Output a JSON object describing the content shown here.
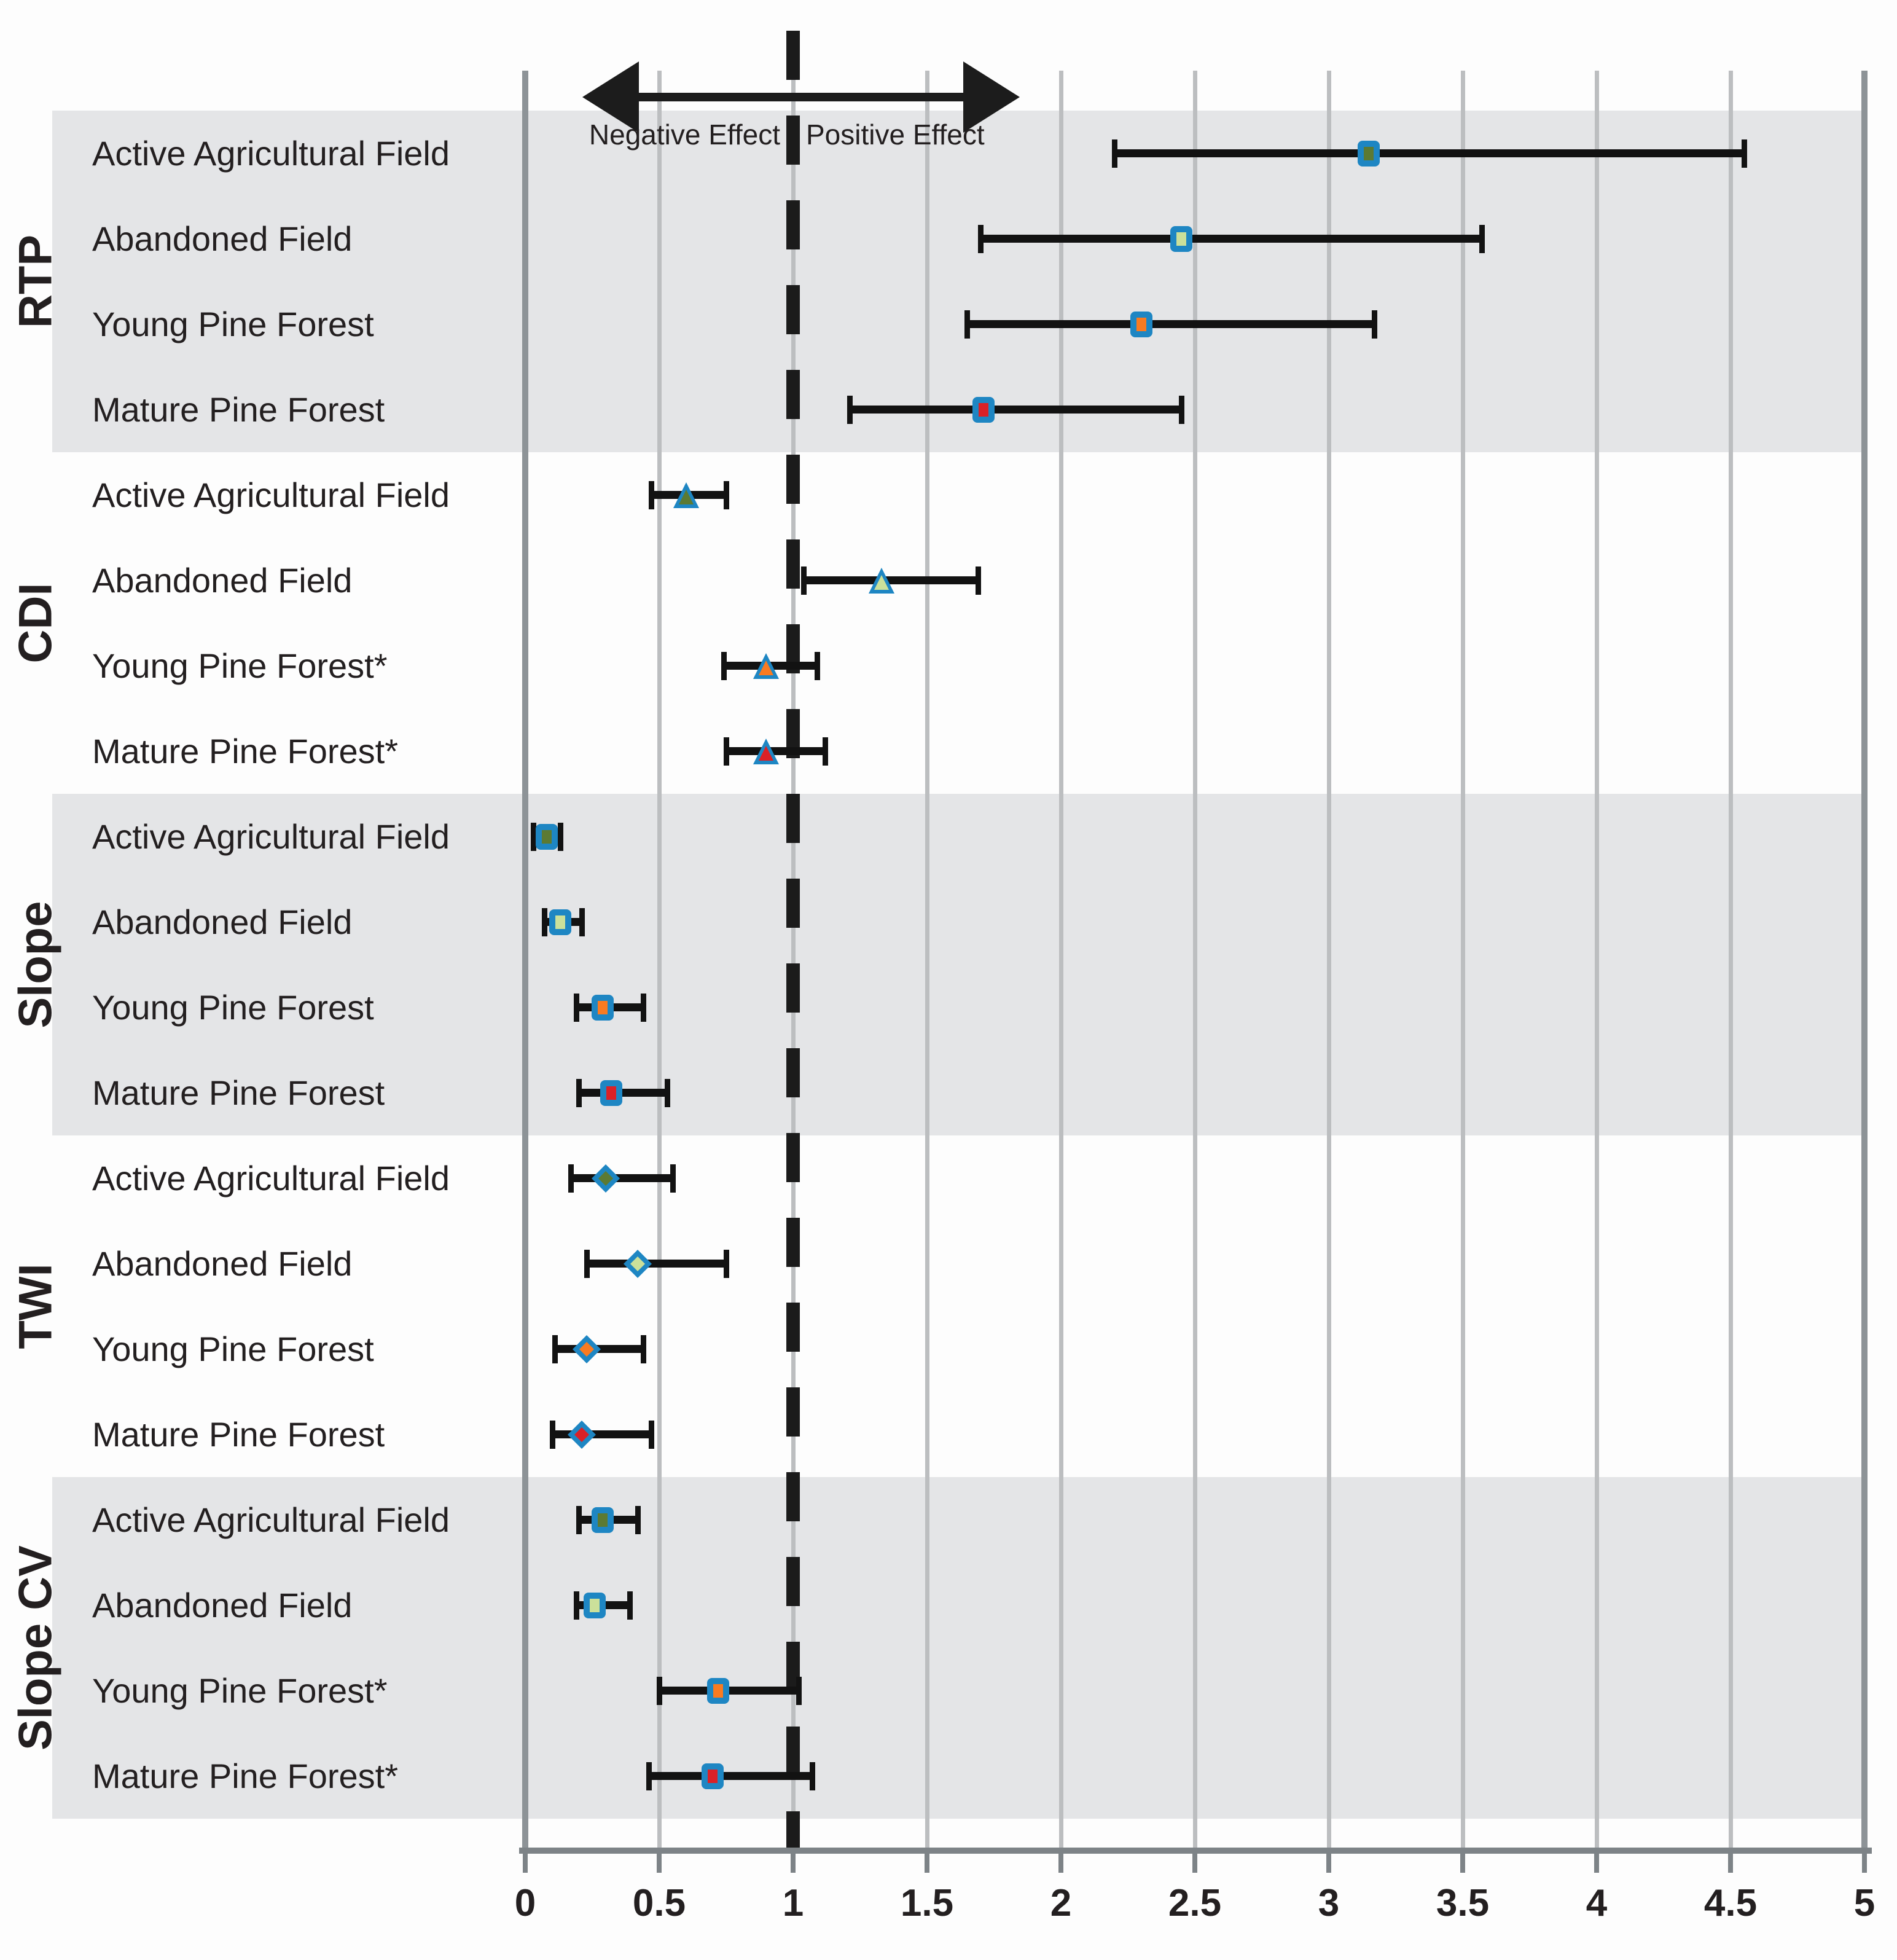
{
  "chart_data": {
    "type": "scatter",
    "subtype": "forest-plot-with-error-bars",
    "title": "",
    "xlabel": "",
    "ylabel": "",
    "axis": {
      "min": 0,
      "max": 5,
      "step": 0.5,
      "tick_labels": [
        "0",
        "0.5",
        "1",
        "1.5",
        "2",
        "2.5",
        "3",
        "3.5",
        "4",
        "4.5",
        "5"
      ],
      "reference_line_x": 1,
      "grid": true
    },
    "annotations": {
      "negative_label": "Negative Effect",
      "positive_label": "Positive Effect"
    },
    "colors": {
      "marker_border": "#1e86c3",
      "fill_active_agricultural": "#5c7a33",
      "fill_abandoned": "#cbe09a",
      "fill_young_pine": "#f97b21",
      "fill_mature_pine": "#da2127",
      "band": "#e4e5e7",
      "grid_line": "#bcbec0",
      "frame_line": "#8d9397",
      "axis_line": "#7d8387",
      "error_bar": "#121212",
      "text": "#231f20",
      "dashed_line": "#1b1b1b"
    },
    "groups": [
      {
        "label": "RTP",
        "marker": "square",
        "shaded": true,
        "rows": [
          {
            "label": "Active Agricultural Field",
            "fill": "fill_active_agricultural",
            "value": 3.15,
            "ci_low": 2.2,
            "ci_high": 4.55
          },
          {
            "label": "Abandoned Field",
            "fill": "fill_abandoned",
            "value": 2.45,
            "ci_low": 1.7,
            "ci_high": 3.57
          },
          {
            "label": "Young Pine Forest",
            "fill": "fill_young_pine",
            "value": 2.3,
            "ci_low": 1.65,
            "ci_high": 3.17
          },
          {
            "label": "Mature Pine Forest",
            "fill": "fill_mature_pine",
            "value": 1.71,
            "ci_low": 1.21,
            "ci_high": 2.45
          }
        ]
      },
      {
        "label": "CDI",
        "marker": "triangle",
        "shaded": false,
        "rows": [
          {
            "label": "Active Agricultural Field",
            "fill": "fill_active_agricultural",
            "value": 0.6,
            "ci_low": 0.47,
            "ci_high": 0.75
          },
          {
            "label": "Abandoned Field",
            "fill": "fill_abandoned",
            "value": 1.33,
            "ci_low": 1.04,
            "ci_high": 1.69
          },
          {
            "label": "Young Pine Forest*",
            "fill": "fill_young_pine",
            "value": 0.9,
            "ci_low": 0.74,
            "ci_high": 1.09
          },
          {
            "label": "Mature Pine Forest*",
            "fill": "fill_mature_pine",
            "value": 0.9,
            "ci_low": 0.75,
            "ci_high": 1.12
          }
        ]
      },
      {
        "label": "Slope",
        "marker": "square",
        "shaded": true,
        "rows": [
          {
            "label": "Active Agricultural Field",
            "fill": "fill_active_agricultural",
            "value": 0.08,
            "ci_low": 0.03,
            "ci_high": 0.13
          },
          {
            "label": "Abandoned Field",
            "fill": "fill_abandoned",
            "value": 0.13,
            "ci_low": 0.07,
            "ci_high": 0.21
          },
          {
            "label": "Young Pine Forest",
            "fill": "fill_young_pine",
            "value": 0.29,
            "ci_low": 0.19,
            "ci_high": 0.44
          },
          {
            "label": "Mature Pine Forest",
            "fill": "fill_mature_pine",
            "value": 0.32,
            "ci_low": 0.2,
            "ci_high": 0.53
          }
        ]
      },
      {
        "label": "TWI",
        "marker": "diamond",
        "shaded": false,
        "rows": [
          {
            "label": "Active Agricultural Field",
            "fill": "fill_active_agricultural",
            "value": 0.3,
            "ci_low": 0.17,
            "ci_high": 0.55
          },
          {
            "label": "Abandoned Field",
            "fill": "fill_abandoned",
            "value": 0.42,
            "ci_low": 0.23,
            "ci_high": 0.75
          },
          {
            "label": "Young Pine Forest",
            "fill": "fill_young_pine",
            "value": 0.23,
            "ci_low": 0.11,
            "ci_high": 0.44
          },
          {
            "label": "Mature Pine Forest",
            "fill": "fill_mature_pine",
            "value": 0.21,
            "ci_low": 0.1,
            "ci_high": 0.47
          }
        ]
      },
      {
        "label": "Slope CV",
        "marker": "square",
        "shaded": true,
        "rows": [
          {
            "label": "Active Agricultural Field",
            "fill": "fill_active_agricultural",
            "value": 0.29,
            "ci_low": 0.2,
            "ci_high": 0.42
          },
          {
            "label": "Abandoned Field",
            "fill": "fill_abandoned",
            "value": 0.26,
            "ci_low": 0.19,
            "ci_high": 0.39
          },
          {
            "label": "Young Pine Forest*",
            "fill": "fill_young_pine",
            "value": 0.72,
            "ci_low": 0.5,
            "ci_high": 1.02
          },
          {
            "label": "Mature Pine Forest*",
            "fill": "fill_mature_pine",
            "value": 0.7,
            "ci_low": 0.46,
            "ci_high": 1.07
          }
        ]
      }
    ]
  }
}
